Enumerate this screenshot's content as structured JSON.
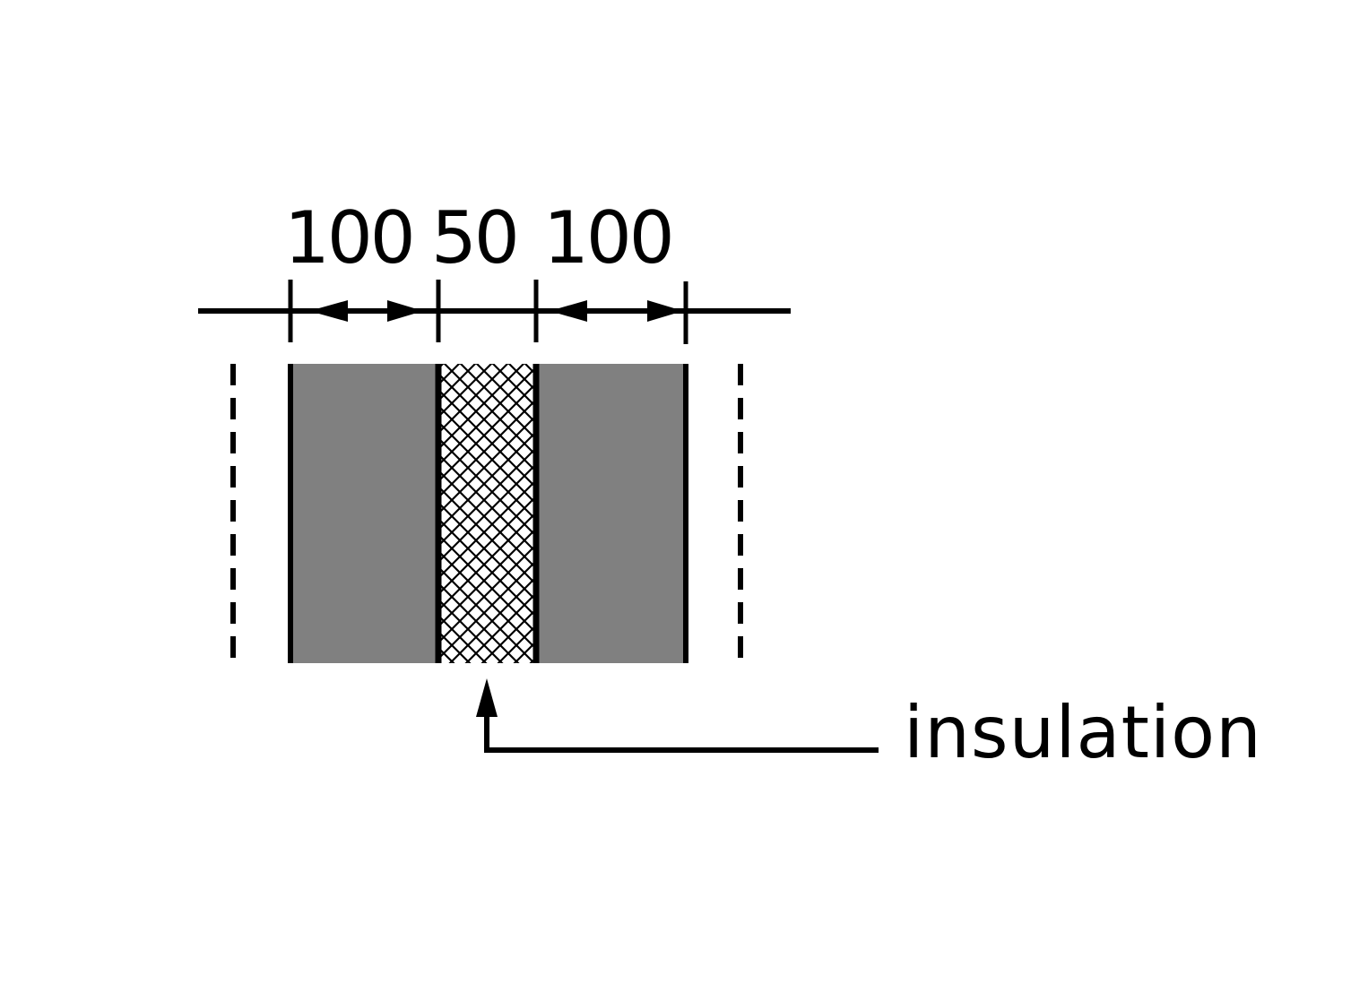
{
  "dimensions": {
    "left_layer": "100",
    "middle_layer": "50",
    "right_layer": "100"
  },
  "callout": {
    "label": "insulation"
  },
  "colors": {
    "solid_layer": "#808080",
    "lines": "#000000",
    "background": "#ffffff"
  }
}
